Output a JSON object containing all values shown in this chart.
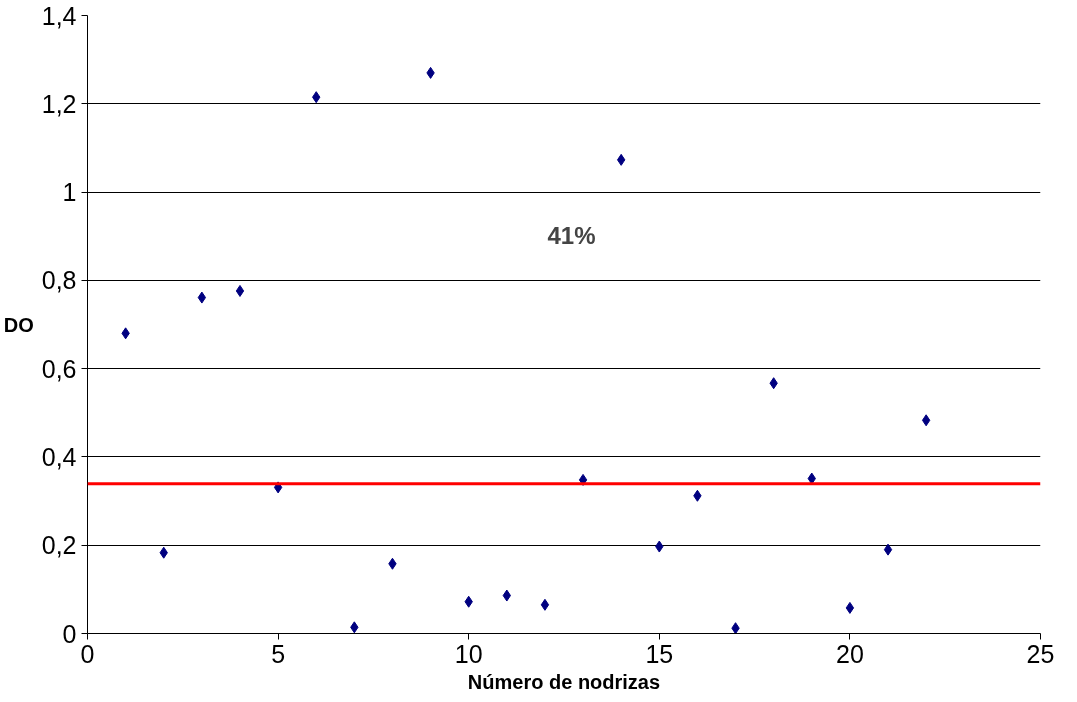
{
  "chart_data": {
    "type": "scatter",
    "xlabel": "Número de nodrizas",
    "ylabel": "DO",
    "annotations": [
      "41%"
    ],
    "x": [
      1,
      2,
      3,
      4,
      5,
      6,
      7,
      8,
      9,
      10,
      11,
      12,
      13,
      14,
      15,
      16,
      17,
      18,
      19,
      20,
      21,
      22
    ],
    "series": [
      {
        "color": "#000080",
        "values": [
          0.68,
          0.183,
          0.761,
          0.776,
          0.331,
          1.215,
          0.014,
          0.158,
          1.27,
          0.072,
          0.086,
          0.065,
          0.348,
          1.073,
          0.197,
          0.312,
          0.012,
          0.567,
          0.351,
          0.058,
          0.19,
          0.483
        ]
      }
    ],
    "xlim": [
      0,
      25
    ],
    "xticks": [
      0,
      5,
      10,
      15,
      20,
      25
    ],
    "ylim": [
      0,
      1.4
    ],
    "yticks": [
      0,
      {
        "value": 0.2,
        "label": "0,2"
      },
      {
        "value": 0.4,
        "label": "0,4"
      },
      {
        "value": 0.6,
        "label": "0,6"
      },
      {
        "value": 0.8,
        "label": "0,8"
      },
      1,
      {
        "value": 1.2,
        "label": "1,2"
      },
      {
        "value": 1.4,
        "label": "1,4"
      }
    ],
    "ref_lines": [
      {
        "axis": "y",
        "value": 0.339,
        "color": "#ff0000"
      }
    ],
    "grid": "y",
    "marker": "diamond"
  }
}
